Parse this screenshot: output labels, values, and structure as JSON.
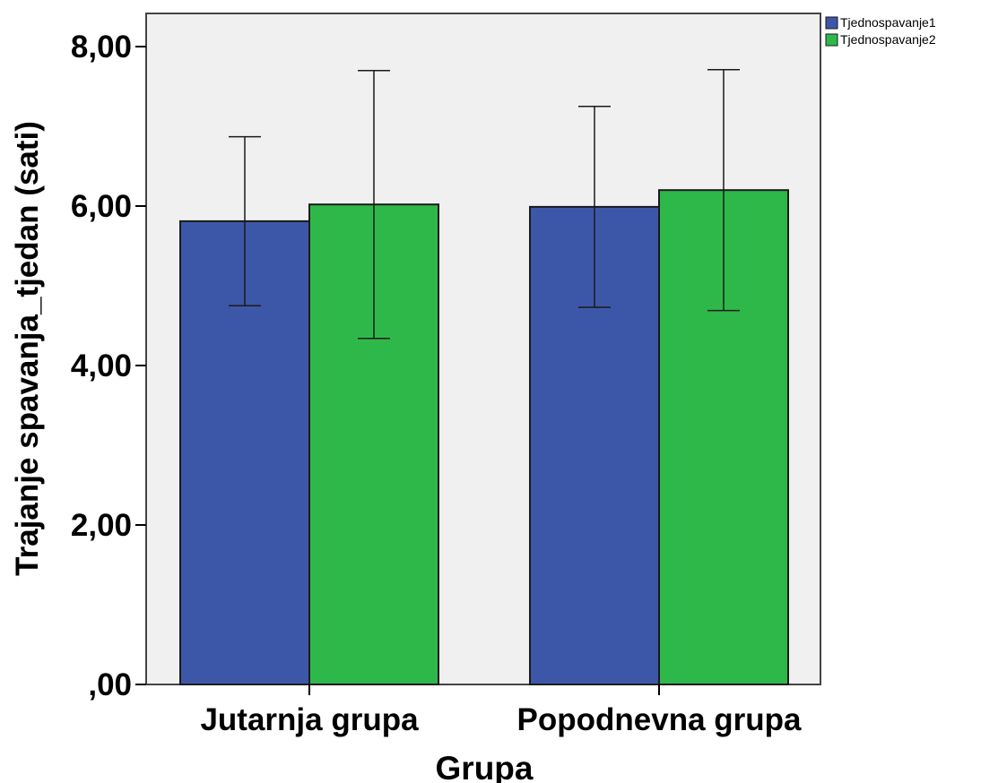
{
  "chart_data": {
    "type": "bar",
    "title": "",
    "xlabel": "Grupa",
    "ylabel": "Trajanje spavanja_tjedan (sati)",
    "ylim": [
      0,
      8.4
    ],
    "y_ticks": [
      {
        "value": 0,
        "label": ",00"
      },
      {
        "value": 2,
        "label": "2,00"
      },
      {
        "value": 4,
        "label": "4,00"
      },
      {
        "value": 6,
        "label": "6,00"
      },
      {
        "value": 8,
        "label": "8,00"
      }
    ],
    "categories": [
      "Jutarnja grupa",
      "Popodnevna grupa"
    ],
    "series": [
      {
        "name": "Tjednospavanje1",
        "color": "#3D57A8",
        "values": [
          5.81,
          5.99
        ],
        "err_low": [
          4.75,
          4.73
        ],
        "err_high": [
          6.87,
          7.25
        ]
      },
      {
        "name": "Tjednospavanje2",
        "color": "#2EB84A",
        "values": [
          6.02,
          6.2
        ],
        "err_low": [
          4.34,
          4.69
        ],
        "err_high": [
          7.7,
          7.71
        ]
      }
    ],
    "legend_position": "top-right",
    "grid": false,
    "plot_background": "#F0F0F0"
  }
}
